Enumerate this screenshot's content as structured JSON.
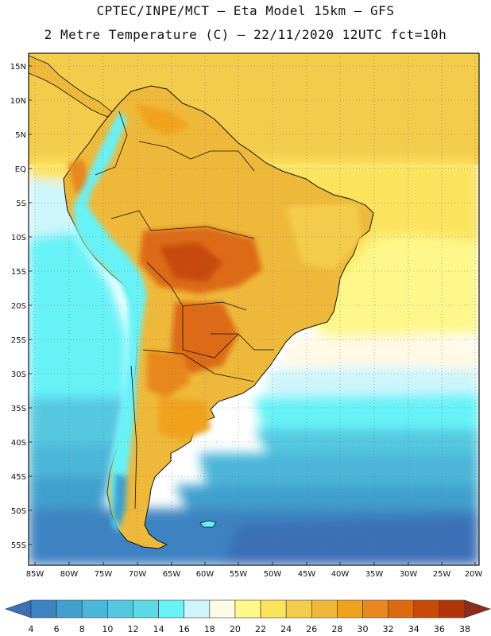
{
  "header": {
    "line1": "CPTEC/INPE/MCT –  Eta Model 15km – GFS",
    "line2": "2 Metre Temperature (C) – 22/11/2020 12UTC fct=10h"
  },
  "axes": {
    "lat_labels": [
      "15N",
      "10N",
      "5N",
      "EQ",
      "5S",
      "10S",
      "15S",
      "20S",
      "25S",
      "30S",
      "35S",
      "40S",
      "45S",
      "50S",
      "55S"
    ],
    "lon_labels": [
      "85W",
      "80W",
      "75W",
      "70W",
      "65W",
      "60W",
      "55W",
      "50W",
      "45W",
      "40W",
      "35W",
      "30W",
      "25W",
      "20W"
    ]
  },
  "colorbar": {
    "labels": [
      "4",
      "6",
      "8",
      "10",
      "12",
      "14",
      "16",
      "18",
      "20",
      "22",
      "24",
      "26",
      "28",
      "30",
      "32",
      "34",
      "36",
      "38"
    ],
    "colors": [
      "#3b6fb6",
      "#3d83c1",
      "#41a0cd",
      "#4bb6d8",
      "#55c8e0",
      "#5ad9e6",
      "#66f2f7",
      "#cdf5fb",
      "#fff9e6",
      "#fff78a",
      "#fbe35d",
      "#f4cc4c",
      "#eeb93a",
      "#f0a21c",
      "#e8871e",
      "#dd6a12",
      "#c84a0a",
      "#b03508",
      "#8f2a1e"
    ]
  }
}
